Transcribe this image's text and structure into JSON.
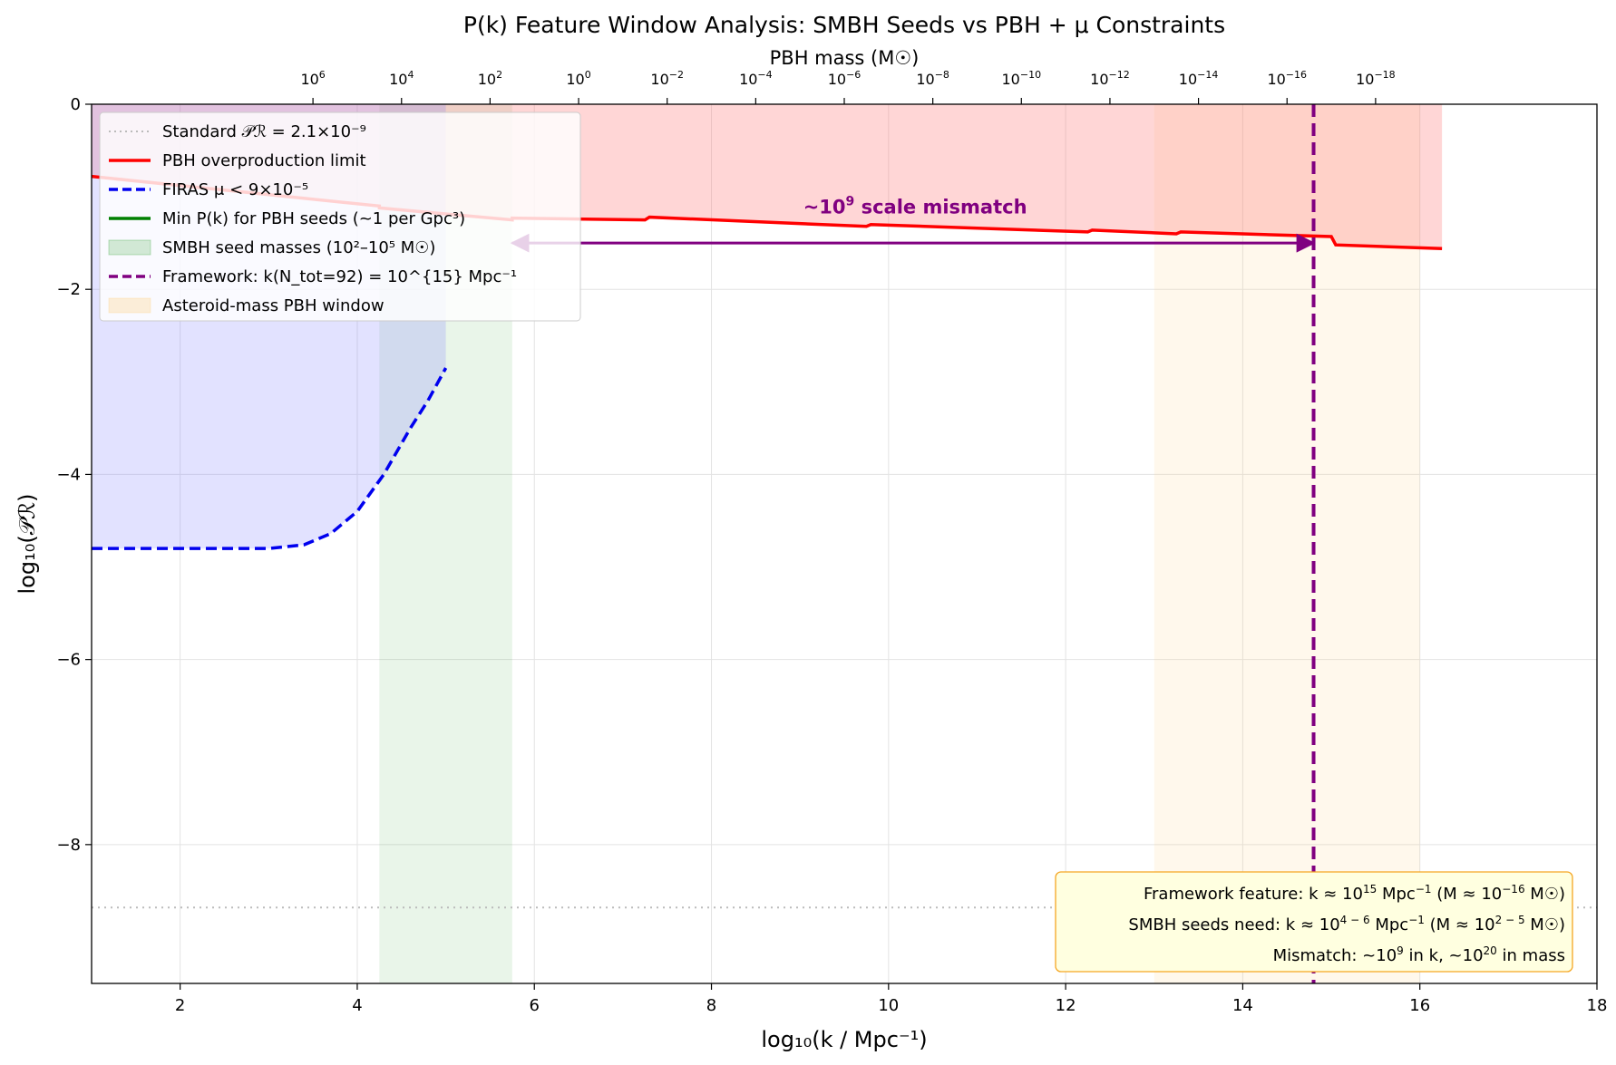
{
  "chart_data": {
    "type": "line",
    "title": "P(k) Feature Window Analysis: SMBH Seeds vs PBH + μ Constraints",
    "xlabel": "log₁₀(k / Mpc⁻¹)",
    "ylabel": "log₁₀(𝒫ℛ)",
    "top_axis_label": "PBH mass (M☉)",
    "xlim": [
      1,
      18
    ],
    "ylim": [
      -9.5,
      0
    ],
    "grid": true,
    "legend_position": "upper left",
    "x_ticks": [
      2,
      4,
      6,
      8,
      10,
      12,
      14,
      16,
      18
    ],
    "y_ticks": [
      0,
      -2,
      -4,
      -6,
      -8
    ],
    "top_ticks": [
      {
        "log10_k": 3.5,
        "exp": "6"
      },
      {
        "log10_k": 4.5,
        "exp": "4"
      },
      {
        "log10_k": 5.5,
        "exp": "2"
      },
      {
        "log10_k": 6.5,
        "exp": "0"
      },
      {
        "log10_k": 7.5,
        "exp": "−2"
      },
      {
        "log10_k": 8.5,
        "exp": "−4"
      },
      {
        "log10_k": 9.5,
        "exp": "−6"
      },
      {
        "log10_k": 10.5,
        "exp": "−8"
      },
      {
        "log10_k": 11.5,
        "exp": "−10"
      },
      {
        "log10_k": 12.5,
        "exp": "−12"
      },
      {
        "log10_k": 13.5,
        "exp": "−14"
      },
      {
        "log10_k": 14.5,
        "exp": "−16"
      },
      {
        "log10_k": 15.5,
        "exp": "−18"
      }
    ],
    "series": [
      {
        "name": "Standard 𝒫ℛ = 2.1×10⁻⁹",
        "style": "dotted",
        "color": "#bbbbbb",
        "x": [
          1,
          18
        ],
        "y": [
          -8.68,
          -8.68
        ]
      },
      {
        "name": "PBH overproduction limit",
        "style": "solid",
        "color": "#ff0000",
        "x": [
          1,
          4.25,
          4.25,
          5.75,
          5.75,
          7.25,
          7.3,
          9.75,
          9.8,
          12.25,
          12.3,
          13.25,
          13.3,
          15.0,
          15.05,
          16.25
        ],
        "y": [
          -0.78,
          -1.1,
          -1.12,
          -1.25,
          -1.23,
          -1.25,
          -1.22,
          -1.32,
          -1.3,
          -1.38,
          -1.36,
          -1.4,
          -1.38,
          -1.43,
          -1.52,
          -1.56
        ]
      },
      {
        "name": "FIRAS μ < 9×10⁻⁵",
        "style": "dashed",
        "color": "#0000ee",
        "x": [
          1,
          2,
          3,
          3.4,
          3.7,
          4.0,
          4.3,
          4.6,
          4.8,
          5.0
        ],
        "y": [
          -4.8,
          -4.8,
          -4.8,
          -4.76,
          -4.64,
          -4.4,
          -4.0,
          -3.5,
          -3.2,
          -2.85
        ]
      },
      {
        "name": "Min P(k) for PBH seeds (~1 per Gpc³)",
        "style": "solid",
        "color": "#008000",
        "x": [],
        "y": []
      }
    ],
    "bands": [
      {
        "name": "SMBH seed masses (10²–10⁵ M☉)",
        "x_range": [
          4.25,
          5.75
        ],
        "color": "#2ca02c",
        "opacity": 0.1
      },
      {
        "name": "Asteroid-mass PBH window",
        "x_range": [
          13.0,
          16.0
        ],
        "color": "#ffd27f",
        "opacity": 0.15
      }
    ],
    "excluded_regions": [
      {
        "bound": "PBH overproduction limit",
        "color": "#ff6b6b",
        "opacity": 0.28
      },
      {
        "bound": "FIRAS μ < 9×10⁻⁵",
        "color": "#7b7bff",
        "opacity": 0.22
      }
    ],
    "vertical_lines": [
      {
        "name": "Framework: k(N_tot=92) = 10^{15} Mpc⁻¹",
        "x": 14.8,
        "style": "dashed",
        "color": "#800080"
      }
    ],
    "arrow": {
      "from_x": 14.8,
      "to_x": 5.75,
      "y": -1.5,
      "color": "#800080"
    },
    "annotation": {
      "text_main": "~10",
      "text_sup": "9",
      "text_rest": " scale mismatch",
      "x": 10.3,
      "y": -1.1,
      "color": "#800080"
    },
    "info_box": {
      "line1": {
        "a": "Framework feature: k ≈ 10",
        "a_sup": "15",
        "b": " Mpc",
        "b_sup": "−1",
        "c": " (M ≈ 10",
        "c_sup": "−16",
        "d": " M☉)"
      },
      "line2": {
        "a": "SMBH seeds need: k ≈ 10",
        "a_sup": "4 − 6",
        "b": " Mpc",
        "b_sup": "−1",
        "c": " (M ≈ 10",
        "c_sup": "2 − 5",
        "d": " M☉)"
      },
      "line3": {
        "a": "Mismatch: ~10",
        "a_sup": "9",
        "b": " in k, ~10",
        "b_sup": "20",
        "c": " in mass"
      }
    }
  }
}
